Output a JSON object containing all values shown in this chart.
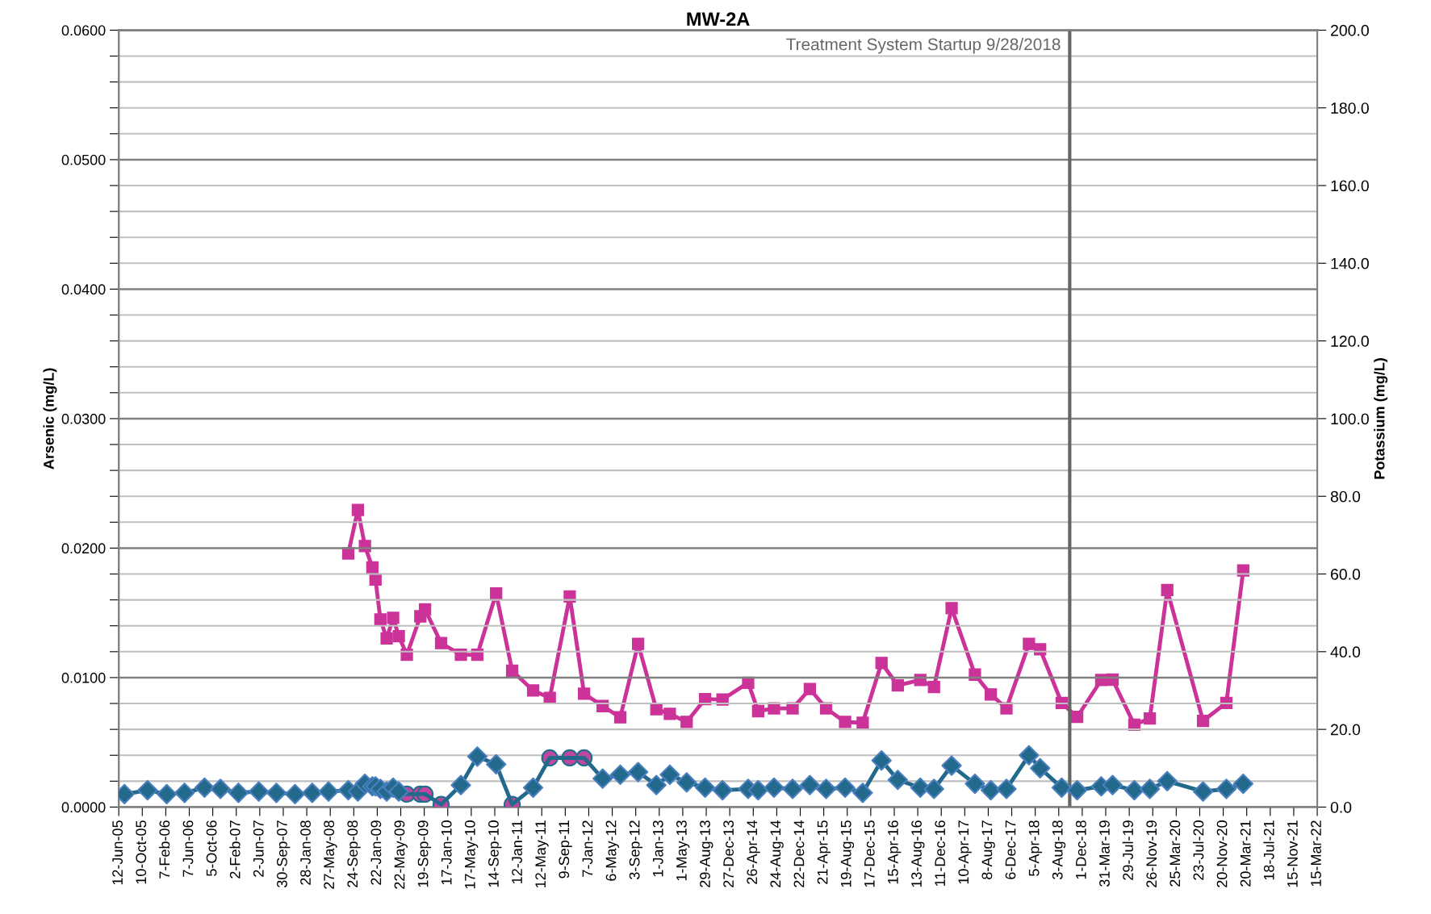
{
  "chart_data": {
    "type": "line",
    "title": "MW-2A",
    "ylabel": "Arsenic (mg/L)",
    "y2label": "Potassium (mg/L)",
    "x": [
      "2005-07-11",
      "2005-11-06",
      "2006-02-12",
      "2006-05-14",
      "2006-08-24",
      "2006-11-13",
      "2007-02-13",
      "2007-05-28",
      "2007-08-26",
      "2007-11-29",
      "2008-02-25",
      "2008-05-18",
      "2008-08-27",
      "2008-10-15",
      "2008-11-20",
      "2008-12-28",
      "2009-01-13",
      "2009-02-07",
      "2009-03-11",
      "2009-04-13",
      "2009-05-12",
      "2009-06-22",
      "2009-08-30",
      "2009-09-23",
      "2009-12-14",
      "2010-03-25",
      "2010-06-17",
      "2010-09-21",
      "2010-12-12",
      "2011-03-29",
      "2011-06-22",
      "2011-10-02",
      "2011-12-14",
      "2012-03-18",
      "2012-06-16",
      "2012-09-15",
      "2012-12-17",
      "2013-02-24",
      "2013-05-21",
      "2013-08-23",
      "2013-11-20",
      "2014-03-31",
      "2014-05-21",
      "2014-08-10",
      "2014-11-13",
      "2015-02-09",
      "2015-05-03",
      "2015-08-08",
      "2015-11-06",
      "2016-02-10",
      "2016-05-03",
      "2016-08-26",
      "2016-11-04",
      "2017-02-02",
      "2017-06-01",
      "2017-08-21",
      "2017-11-09",
      "2018-03-04",
      "2018-04-30",
      "2018-08-18",
      "2018-11-05",
      "2019-03-08",
      "2019-05-05",
      "2019-08-24",
      "2019-11-11",
      "2020-02-08",
      "2020-08-09",
      "2020-12-06",
      "2021-03-02"
    ],
    "series": [
      {
        "axis": "y2",
        "marker": "square",
        "color": "#cc3399",
        "values": [
          null,
          null,
          null,
          null,
          null,
          null,
          null,
          null,
          null,
          null,
          null,
          null,
          65.3,
          76.5,
          67.2,
          61.7,
          58.6,
          48.3,
          43.4,
          48.7,
          44.0,
          39.2,
          49.1,
          50.9,
          42.2,
          39.2,
          39.2,
          55.0,
          35.1,
          30.0,
          28.1,
          54.2,
          29.2,
          26.0,
          23.1,
          42.0,
          25.2,
          24.0,
          21.9,
          27.8,
          27.7,
          32.0,
          24.7,
          25.4,
          25.4,
          30.4,
          25.4,
          21.9,
          21.7,
          37.1,
          31.3,
          32.7,
          30.9,
          51.2,
          34.1,
          29.0,
          25.4,
          42.0,
          40.6,
          26.8,
          23.2,
          32.7,
          32.8,
          21.2,
          22.8,
          55.9,
          22.2,
          26.8,
          60.9
        ]
      },
      {
        "marker": "none",
        "color": "#22698c",
        "values": [
          0.001,
          0.0013,
          0.001,
          0.0011,
          0.0015,
          0.0014,
          0.0011,
          0.0012,
          0.0011,
          0.001,
          0.0011,
          0.0012,
          0.0013,
          0.0012,
          0.0018,
          0.0016,
          0.0016,
          0.0014,
          0.0012,
          0.0015,
          0.0012,
          0.001,
          0.001,
          0.001,
          0.0002,
          0.0017,
          0.0039,
          0.0033,
          0.0002,
          0.0015,
          0.0038,
          0.0038,
          0.0038,
          0.0022,
          0.0025,
          0.0027,
          0.0017,
          0.0025,
          0.0019,
          0.0015,
          0.0013,
          0.0014,
          0.0013,
          0.0015,
          0.0014,
          0.0017,
          0.0014,
          0.0015,
          0.0011,
          0.0036,
          0.0021,
          0.0015,
          0.0014,
          0.0032,
          0.0018,
          0.0013,
          0.0014,
          0.004,
          0.003,
          0.0015,
          0.0013,
          0.0016,
          0.0017,
          0.0013,
          0.0014,
          0.002,
          0.0012,
          0.0014,
          0.0018
        ]
      },
      {
        "type": "scatter",
        "marker": "diamond",
        "color": "#22698c",
        "values": [
          0.001,
          0.0013,
          0.001,
          0.0011,
          0.0015,
          0.0014,
          0.0011,
          0.0012,
          0.0011,
          0.001,
          0.0011,
          0.0012,
          0.0013,
          0.0012,
          0.0018,
          0.0016,
          0.0016,
          0.0014,
          0.0012,
          0.0015,
          0.0012,
          null,
          null,
          null,
          null,
          0.0017,
          0.0039,
          0.0033,
          null,
          0.0015,
          null,
          null,
          null,
          0.0022,
          0.0025,
          0.0027,
          0.0017,
          0.0025,
          0.0019,
          0.0015,
          0.0013,
          0.0014,
          0.0013,
          0.0015,
          0.0014,
          0.0017,
          0.0014,
          0.0015,
          0.0011,
          0.0036,
          0.0021,
          0.0015,
          0.0014,
          0.0032,
          0.0018,
          0.0013,
          0.0014,
          0.004,
          0.003,
          0.0015,
          0.0013,
          0.0016,
          0.0017,
          0.0013,
          0.0014,
          0.002,
          0.0012,
          0.0014,
          0.0018
        ]
      },
      {
        "type": "scatter",
        "marker": "circle",
        "color": "#c0479e",
        "values": [
          null,
          null,
          null,
          null,
          null,
          null,
          null,
          null,
          null,
          null,
          null,
          null,
          null,
          null,
          null,
          null,
          null,
          null,
          null,
          null,
          null,
          0.001,
          0.001,
          0.001,
          0.0002,
          null,
          null,
          null,
          0.0002,
          null,
          0.0038,
          0.0038,
          0.0038,
          null,
          null,
          null,
          null,
          null,
          null,
          null,
          null,
          null,
          null,
          null,
          null,
          null,
          null,
          null,
          null,
          null,
          null,
          null,
          null,
          null,
          null,
          null,
          null,
          null,
          null,
          null,
          null,
          null,
          null,
          null,
          null,
          null,
          null,
          null,
          null
        ]
      }
    ],
    "xlim": [
      "2005-06-12",
      "2022-03-15"
    ],
    "xticks": [
      {
        "value": "2005-06-12",
        "label": "12-Jun-05"
      },
      {
        "value": "2005-10-10",
        "label": "10-Oct-05"
      },
      {
        "value": "2006-02-07",
        "label": "7-Feb-06"
      },
      {
        "value": "2006-06-07",
        "label": "7-Jun-06"
      },
      {
        "value": "2006-10-05",
        "label": "5-Oct-06"
      },
      {
        "value": "2007-02-02",
        "label": "2-Feb-07"
      },
      {
        "value": "2007-06-02",
        "label": "2-Jun-07"
      },
      {
        "value": "2007-09-30",
        "label": "30-Sep-07"
      },
      {
        "value": "2008-01-28",
        "label": "28-Jan-08"
      },
      {
        "value": "2008-05-27",
        "label": "27-May-08"
      },
      {
        "value": "2008-09-24",
        "label": "24-Sep-08"
      },
      {
        "value": "2009-01-22",
        "label": "22-Jan-09"
      },
      {
        "value": "2009-05-22",
        "label": "22-May-09"
      },
      {
        "value": "2009-09-19",
        "label": "19-Sep-09"
      },
      {
        "value": "2010-01-17",
        "label": "17-Jan-10"
      },
      {
        "value": "2010-05-17",
        "label": "17-May-10"
      },
      {
        "value": "2010-09-14",
        "label": "14-Sep-10"
      },
      {
        "value": "2011-01-12",
        "label": "12-Jan-11"
      },
      {
        "value": "2011-05-12",
        "label": "12-May-11"
      },
      {
        "value": "2011-09-09",
        "label": "9-Sep-11"
      },
      {
        "value": "2012-01-07",
        "label": "7-Jan-12"
      },
      {
        "value": "2012-05-06",
        "label": "6-May-12"
      },
      {
        "value": "2012-09-03",
        "label": "3-Sep-12"
      },
      {
        "value": "2013-01-01",
        "label": "1-Jan-13"
      },
      {
        "value": "2013-05-01",
        "label": "1-May-13"
      },
      {
        "value": "2013-08-29",
        "label": "29-Aug-13"
      },
      {
        "value": "2013-12-27",
        "label": "27-Dec-13"
      },
      {
        "value": "2014-04-26",
        "label": "26-Apr-14"
      },
      {
        "value": "2014-08-24",
        "label": "24-Aug-14"
      },
      {
        "value": "2014-12-22",
        "label": "22-Dec-14"
      },
      {
        "value": "2015-04-21",
        "label": "21-Apr-15"
      },
      {
        "value": "2015-08-19",
        "label": "19-Aug-15"
      },
      {
        "value": "2015-12-17",
        "label": "17-Dec-15"
      },
      {
        "value": "2016-04-15",
        "label": "15-Apr-16"
      },
      {
        "value": "2016-08-13",
        "label": "13-Aug-16"
      },
      {
        "value": "2016-12-11",
        "label": "11-Dec-16"
      },
      {
        "value": "2017-04-10",
        "label": "10-Apr-17"
      },
      {
        "value": "2017-08-08",
        "label": "8-Aug-17"
      },
      {
        "value": "2017-12-06",
        "label": "6-Dec-17"
      },
      {
        "value": "2018-04-05",
        "label": "5-Apr-18"
      },
      {
        "value": "2018-08-03",
        "label": "3-Aug-18"
      },
      {
        "value": "2018-12-01",
        "label": "1-Dec-18"
      },
      {
        "value": "2019-03-31",
        "label": "31-Mar-19"
      },
      {
        "value": "2019-07-29",
        "label": "29-Jul-19"
      },
      {
        "value": "2019-11-26",
        "label": "26-Nov-19"
      },
      {
        "value": "2020-03-25",
        "label": "25-Mar-20"
      },
      {
        "value": "2020-07-23",
        "label": "23-Jul-20"
      },
      {
        "value": "2020-11-20",
        "label": "20-Nov-20"
      },
      {
        "value": "2021-03-20",
        "label": "20-Mar-21"
      },
      {
        "value": "2021-07-18",
        "label": "18-Jul-21"
      },
      {
        "value": "2021-11-15",
        "label": "15-Nov-21"
      },
      {
        "value": "2022-03-15",
        "label": "15-Mar-22"
      }
    ],
    "ylim": [
      0,
      0.06
    ],
    "yticks": [
      {
        "value": 0,
        "label": "0.0000"
      },
      {
        "value": 0.002,
        "label": null
      },
      {
        "value": 0.004,
        "label": null
      },
      {
        "value": 0.006,
        "label": null
      },
      {
        "value": 0.008,
        "label": null
      },
      {
        "value": 0.01,
        "label": "0.0100"
      },
      {
        "value": 0.012,
        "label": null
      },
      {
        "value": 0.014,
        "label": null
      },
      {
        "value": 0.016,
        "label": null
      },
      {
        "value": 0.018,
        "label": null
      },
      {
        "value": 0.02,
        "label": "0.0200"
      },
      {
        "value": 0.022,
        "label": null
      },
      {
        "value": 0.024,
        "label": null
      },
      {
        "value": 0.026,
        "label": null
      },
      {
        "value": 0.028,
        "label": null
      },
      {
        "value": 0.03,
        "label": "0.0300"
      },
      {
        "value": 0.032,
        "label": null
      },
      {
        "value": 0.034,
        "label": null
      },
      {
        "value": 0.036,
        "label": null
      },
      {
        "value": 0.038,
        "label": null
      },
      {
        "value": 0.04,
        "label": "0.0400"
      },
      {
        "value": 0.042,
        "label": null
      },
      {
        "value": 0.044,
        "label": null
      },
      {
        "value": 0.046,
        "label": null
      },
      {
        "value": 0.048,
        "label": null
      },
      {
        "value": 0.05,
        "label": "0.0500"
      },
      {
        "value": 0.052,
        "label": null
      },
      {
        "value": 0.054,
        "label": null
      },
      {
        "value": 0.056,
        "label": null
      },
      {
        "value": 0.058,
        "label": null
      },
      {
        "value": 0.06,
        "label": "0.0600"
      }
    ],
    "y2lim": [
      0,
      200
    ],
    "y2ticks": [
      {
        "value": 0,
        "label": "0.0"
      },
      {
        "value": 20,
        "label": "20.0"
      },
      {
        "value": 40,
        "label": "40.0"
      },
      {
        "value": 60,
        "label": "60.0"
      },
      {
        "value": 80,
        "label": "80.0"
      },
      {
        "value": 100,
        "label": "100.0"
      },
      {
        "value": 120,
        "label": "120.0"
      },
      {
        "value": 140,
        "label": "140.0"
      },
      {
        "value": 160,
        "label": "160.0"
      },
      {
        "value": 180,
        "label": "180.0"
      },
      {
        "value": 200,
        "label": "200.0"
      }
    ],
    "ref_lines": [
      {
        "axis": "x",
        "value": "2018-09-28",
        "label": "Treatment System Startup 9/28/2018",
        "color": "#666666"
      }
    ],
    "grid": "y",
    "legend": false
  }
}
